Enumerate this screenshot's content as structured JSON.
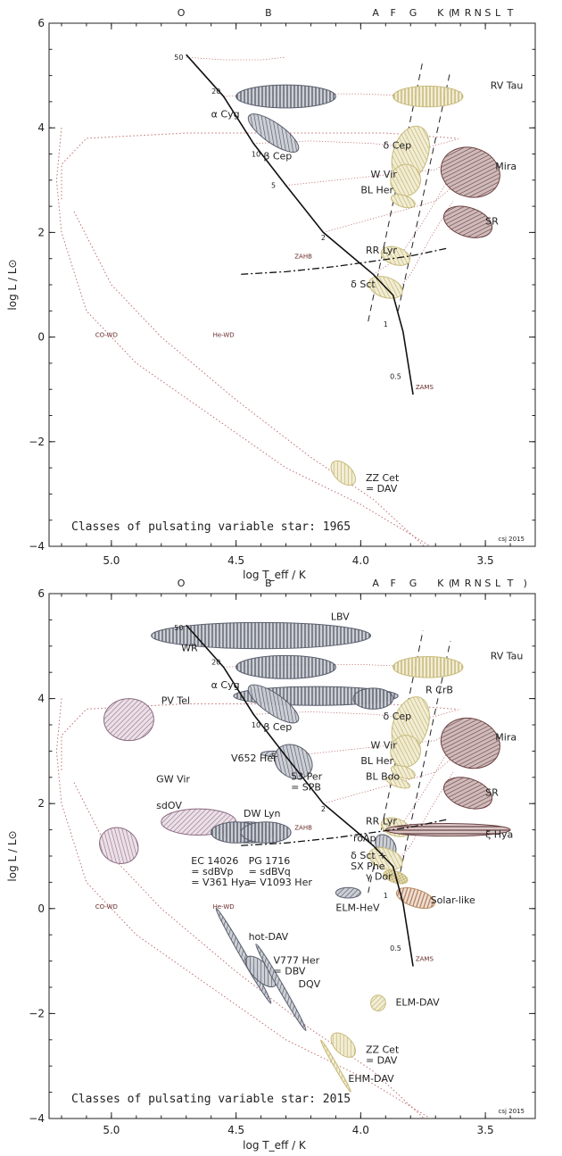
{
  "chart_data": [
    {
      "type": "scatter",
      "title": "Classes of pulsating variable star: 1965",
      "credit": "csj 2015",
      "xlabel": "log T_eff / K",
      "ylabel": "log L / L⊙",
      "x_reversed": true,
      "xlim": [
        5.25,
        3.3
      ],
      "ylim": [
        -4,
        6
      ],
      "xticks": [
        5.0,
        4.5,
        4.0,
        3.5
      ],
      "xtick_labels": [
        "5.0",
        "4.5",
        "4.0",
        "3.5"
      ],
      "yticks": [
        -4,
        -2,
        0,
        2,
        4,
        6
      ],
      "ytick_labels": [
        "−4",
        "−2",
        "0",
        "2",
        "4",
        "6"
      ],
      "spectral_types": [
        "O",
        "B",
        "A",
        "F",
        "G",
        "K",
        "(",
        "M",
        "R",
        "N",
        "S",
        "L",
        "T"
      ],
      "spectral_types_x": [
        4.72,
        4.37,
        3.94,
        3.87,
        3.79,
        3.68,
        3.64,
        3.62,
        3.57,
        3.53,
        3.49,
        3.45,
        3.4
      ],
      "zams": [
        [
          4.7,
          5.4
        ],
        [
          4.55,
          4.6
        ],
        [
          4.43,
          3.7
        ],
        [
          4.3,
          2.9
        ],
        [
          4.15,
          2.0
        ],
        [
          4.05,
          1.6
        ],
        [
          3.95,
          1.2
        ],
        [
          3.87,
          0.8
        ],
        [
          3.83,
          0.1
        ],
        [
          3.79,
          -1.1
        ]
      ],
      "zams_label": "ZAMS",
      "zahb": [
        [
          4.48,
          1.2
        ],
        [
          4.3,
          1.25
        ],
        [
          4.1,
          1.35
        ],
        [
          3.95,
          1.45
        ],
        [
          3.8,
          1.55
        ],
        [
          3.65,
          1.7
        ]
      ],
      "zahb_label": "ZAHB",
      "mass_labels": [
        {
          "text": "50",
          "x": 4.73,
          "y": 5.3
        },
        {
          "text": "20",
          "x": 4.58,
          "y": 4.65
        },
        {
          "text": "10",
          "x": 4.42,
          "y": 3.45
        },
        {
          "text": "5",
          "x": 4.35,
          "y": 2.85
        },
        {
          "text": "2",
          "x": 4.15,
          "y": 1.85
        },
        {
          "text": "1",
          "x": 3.9,
          "y": 0.2
        },
        {
          "text": "0.5",
          "x": 3.86,
          "y": -0.8
        }
      ],
      "instability_strip": [
        {
          "x1": 3.97,
          "y1": 0.3,
          "x2": 3.75,
          "y2": 5.3
        },
        {
          "x1": 3.85,
          "y1": 0.5,
          "x2": 3.64,
          "y2": 5.1
        }
      ],
      "wd_tracks": [
        {
          "label": "CO-WD",
          "label_x": 5.02,
          "label_y": 0.0
        },
        {
          "label": "He-WD",
          "label_x": 4.55,
          "label_y": 0.0
        }
      ],
      "classes": [
        {
          "name": "α Cyg",
          "cx": 4.3,
          "cy": 4.6,
          "rx": 0.2,
          "ry": 0.22,
          "angle": 0,
          "color": "#5a5f6e",
          "hatch": "vertical",
          "label_x": 4.6,
          "label_y": 4.2
        },
        {
          "name": "β Cep",
          "cx": 4.35,
          "cy": 3.9,
          "rx": 0.35,
          "ry": 0.12,
          "angle": -55,
          "color": "#5a5f6e",
          "hatch": "diagonal",
          "label_x": 4.39,
          "label_y": 3.4
        },
        {
          "name": "RV Tau",
          "cx": 3.73,
          "cy": 4.6,
          "rx": 0.14,
          "ry": 0.2,
          "angle": 0,
          "color": "#c8bb7c",
          "hatch": "vertical",
          "label_x": 3.48,
          "label_y": 4.75
        },
        {
          "name": "δ Cep",
          "cx": 3.8,
          "cy": 3.5,
          "rx": 1.0,
          "ry": 0.07,
          "angle": -72,
          "color": "#c8bb7c",
          "hatch": "diagonal",
          "label_x": 3.91,
          "label_y": 3.6
        },
        {
          "name": "W Vir",
          "cx": 3.82,
          "cy": 3.0,
          "rx": 0.55,
          "ry": 0.06,
          "angle": -72,
          "color": "#c8bb7c",
          "hatch": "diagonal",
          "label_x": 3.96,
          "label_y": 3.05
        },
        {
          "name": "BL Her",
          "cx": 3.83,
          "cy": 2.6,
          "rx": 0.2,
          "ry": 0.05,
          "angle": -72,
          "color": "#c8bb7c",
          "hatch": "diagonal",
          "label_x": 4.0,
          "label_y": 2.75
        },
        {
          "name": "RR Lyr",
          "cx": 3.86,
          "cy": 1.55,
          "rx": 0.3,
          "ry": 0.06,
          "angle": -72,
          "color": "#c8bb7c",
          "hatch": "diagonal",
          "label_x": 3.98,
          "label_y": 1.6
        },
        {
          "name": "δ Sct",
          "cx": 3.9,
          "cy": 0.95,
          "rx": 0.35,
          "ry": 0.07,
          "angle": -72,
          "color": "#c8bb7c",
          "hatch": "diagonal",
          "label_x": 4.04,
          "label_y": 0.95
        },
        {
          "name": "Mira",
          "cx": 3.56,
          "cy": 3.15,
          "rx": 0.85,
          "ry": 0.12,
          "angle": -72,
          "color": "#6a4040",
          "hatch": "diagonal",
          "label_x": 3.46,
          "label_y": 3.2
        },
        {
          "name": "SR",
          "cx": 3.57,
          "cy": 2.2,
          "rx": 0.5,
          "ry": 0.1,
          "angle": -72,
          "color": "#6a4040",
          "hatch": "diagonal",
          "label_x": 3.5,
          "label_y": 2.15
        },
        {
          "name": "ZZ Cet\n= DAV",
          "cx": 4.07,
          "cy": -2.6,
          "rx": 0.3,
          "ry": 0.06,
          "angle": -45,
          "color": "#c8bb7c",
          "hatch": "diagonal",
          "label_x": 3.98,
          "label_y": -2.75
        }
      ]
    },
    {
      "type": "scatter",
      "title": "Classes of pulsating variable star: 2015",
      "credit": "csj 2015",
      "xlabel": "log T_eff / K",
      "ylabel": "log L / L⊙",
      "x_reversed": true,
      "xlim": [
        5.25,
        3.3
      ],
      "ylim": [
        -4,
        6
      ],
      "xticks": [
        5.0,
        4.5,
        4.0,
        3.5
      ],
      "xtick_labels": [
        "5.0",
        "4.5",
        "4.0",
        "3.5"
      ],
      "yticks": [
        -4,
        -2,
        0,
        2,
        4,
        6
      ],
      "ytick_labels": [
        "−4",
        "−2",
        "0",
        "2",
        "4",
        "6"
      ],
      "spectral_types": [
        "O",
        "B",
        "A",
        "F",
        "G",
        "K",
        "(",
        "M",
        "R",
        "N",
        "S",
        "L",
        "T",
        ")"
      ],
      "spectral_types_x": [
        4.72,
        4.37,
        3.94,
        3.87,
        3.79,
        3.68,
        3.64,
        3.62,
        3.57,
        3.53,
        3.49,
        3.45,
        3.4,
        3.34
      ],
      "zams": [
        [
          4.7,
          5.4
        ],
        [
          4.55,
          4.6
        ],
        [
          4.43,
          3.7
        ],
        [
          4.3,
          2.9
        ],
        [
          4.15,
          2.0
        ],
        [
          4.05,
          1.6
        ],
        [
          3.95,
          1.2
        ],
        [
          3.87,
          0.8
        ],
        [
          3.83,
          0.1
        ],
        [
          3.79,
          -1.1
        ]
      ],
      "zams_label": "ZAMS",
      "zahb": [
        [
          4.48,
          1.2
        ],
        [
          4.3,
          1.25
        ],
        [
          4.1,
          1.35
        ],
        [
          3.95,
          1.45
        ],
        [
          3.8,
          1.55
        ],
        [
          3.65,
          1.7
        ]
      ],
      "zahb_label": "ZAHB",
      "mass_labels": [
        {
          "text": "50",
          "x": 4.73,
          "y": 5.3
        },
        {
          "text": "20",
          "x": 4.58,
          "y": 4.65
        },
        {
          "text": "10",
          "x": 4.42,
          "y": 3.45
        },
        {
          "text": "5",
          "x": 4.35,
          "y": 2.85
        },
        {
          "text": "2",
          "x": 4.15,
          "y": 1.85
        },
        {
          "text": "1",
          "x": 3.9,
          "y": 0.2
        },
        {
          "text": "0.5",
          "x": 3.86,
          "y": -0.8
        }
      ],
      "instability_strip": [
        {
          "x1": 3.97,
          "y1": 0.3,
          "x2": 3.75,
          "y2": 5.3
        },
        {
          "x1": 3.85,
          "y1": 0.5,
          "x2": 3.64,
          "y2": 5.1
        }
      ],
      "wd_tracks": [
        {
          "label": "CO-WD",
          "label_x": 5.02,
          "label_y": 0.0
        },
        {
          "label": "He-WD",
          "label_x": 4.55,
          "label_y": 0.0
        }
      ],
      "classes": [
        {
          "name": "LBV",
          "cx": 4.4,
          "cy": 5.2,
          "rx": 0.44,
          "ry": 0.25,
          "angle": 0,
          "color": "#5a5f6e",
          "hatch": "vertical",
          "label_x": 4.12,
          "label_y": 5.5
        },
        {
          "name": "WR",
          "cx": 4.65,
          "cy": 5.1,
          "rx": 0.0,
          "ry": 0.0,
          "angle": 0,
          "color": "#5a5f6e",
          "hatch": "none",
          "label_x": 4.72,
          "label_y": 4.9
        },
        {
          "name": "α Cyg",
          "cx": 4.3,
          "cy": 4.6,
          "rx": 0.2,
          "ry": 0.22,
          "angle": 0,
          "color": "#5a5f6e",
          "hatch": "vertical",
          "label_x": 4.6,
          "label_y": 4.2
        },
        {
          "name": "PV Tel",
          "cx": 4.18,
          "cy": 4.05,
          "rx": 0.33,
          "ry": 0.18,
          "angle": 0,
          "color": "#5a5f6e",
          "hatch": "vertical",
          "label_x": 4.8,
          "label_y": 3.9
        },
        {
          "name": "R CrB",
          "cx": 3.95,
          "cy": 4.0,
          "rx": 0.08,
          "ry": 0.2,
          "angle": 0,
          "color": "#5a5f6e",
          "hatch": "vertical",
          "label_x": 3.74,
          "label_y": 4.1
        },
        {
          "name": "β Cep",
          "cx": 4.35,
          "cy": 3.9,
          "rx": 0.35,
          "ry": 0.12,
          "angle": -55,
          "color": "#5a5f6e",
          "hatch": "diagonal",
          "label_x": 4.39,
          "label_y": 3.4
        },
        {
          "name": "V652 Her",
          "cx": 4.35,
          "cy": 2.95,
          "rx": 0.05,
          "ry": 0.05,
          "angle": 0,
          "color": "#5a5f6e",
          "hatch": "diagonal",
          "label_x": 4.52,
          "label_y": 2.8
        },
        {
          "name": "53 Per\n= SPB",
          "cx": 4.27,
          "cy": 2.8,
          "rx": 0.55,
          "ry": 0.08,
          "angle": -58,
          "color": "#5a5f6e",
          "hatch": "diagonal",
          "label_x": 4.28,
          "label_y": 2.45
        },
        {
          "name": "RV Tau",
          "cx": 3.73,
          "cy": 4.6,
          "rx": 0.14,
          "ry": 0.2,
          "angle": 0,
          "color": "#c8bb7c",
          "hatch": "vertical",
          "label_x": 3.48,
          "label_y": 4.75
        },
        {
          "name": "δ Cep",
          "cx": 3.8,
          "cy": 3.5,
          "rx": 1.0,
          "ry": 0.07,
          "angle": -72,
          "color": "#c8bb7c",
          "hatch": "diagonal",
          "label_x": 3.91,
          "label_y": 3.6
        },
        {
          "name": "W Vir",
          "cx": 3.82,
          "cy": 3.0,
          "rx": 0.55,
          "ry": 0.06,
          "angle": -72,
          "color": "#c8bb7c",
          "hatch": "diagonal",
          "label_x": 3.96,
          "label_y": 3.05
        },
        {
          "name": "BL Her",
          "cx": 3.83,
          "cy": 2.6,
          "rx": 0.2,
          "ry": 0.05,
          "angle": -72,
          "color": "#c8bb7c",
          "hatch": "diagonal",
          "label_x": 4.0,
          "label_y": 2.75
        },
        {
          "name": "BL Boo",
          "cx": 3.85,
          "cy": 2.4,
          "rx": 0.15,
          "ry": 0.05,
          "angle": -72,
          "color": "#c8bb7c",
          "hatch": "diagonal",
          "label_x": 3.98,
          "label_y": 2.45
        },
        {
          "name": "RR Lyr",
          "cx": 3.86,
          "cy": 1.55,
          "rx": 0.3,
          "ry": 0.06,
          "angle": -72,
          "color": "#c8bb7c",
          "hatch": "diagonal",
          "label_x": 3.98,
          "label_y": 1.6
        },
        {
          "name": "roAp",
          "cx": 3.9,
          "cy": 1.2,
          "rx": 0.3,
          "ry": 0.05,
          "angle": -40,
          "color": "#5a5f6e",
          "hatch": "diagonal",
          "label_x": 4.03,
          "label_y": 1.28
        },
        {
          "name": "δ Sct +\nSX Phe",
          "cx": 3.9,
          "cy": 0.95,
          "rx": 0.35,
          "ry": 0.07,
          "angle": -72,
          "color": "#c8bb7c",
          "hatch": "diagonal",
          "label_x": 4.04,
          "label_y": 0.95
        },
        {
          "name": "γ Dor",
          "cx": 3.86,
          "cy": 0.6,
          "rx": 0.2,
          "ry": 0.05,
          "angle": -72,
          "color": "#c8bb7c",
          "hatch": "cross",
          "label_x": 3.98,
          "label_y": 0.55
        },
        {
          "name": "Solar-like",
          "cx": 3.78,
          "cy": 0.2,
          "rx": 0.3,
          "ry": 0.08,
          "angle": -72,
          "color": "#b88a60",
          "hatch": "horizontal",
          "label_x": 3.72,
          "label_y": 0.1
        },
        {
          "name": "Mira",
          "cx": 3.56,
          "cy": 3.15,
          "rx": 0.85,
          "ry": 0.12,
          "angle": -72,
          "color": "#6a4040",
          "hatch": "diagonal",
          "label_x": 3.46,
          "label_y": 3.2
        },
        {
          "name": "SR",
          "cx": 3.57,
          "cy": 2.2,
          "rx": 0.5,
          "ry": 0.1,
          "angle": -72,
          "color": "#6a4040",
          "hatch": "diagonal",
          "label_x": 3.5,
          "label_y": 2.15
        },
        {
          "name": "ξ Hya",
          "cx": 3.65,
          "cy": 1.5,
          "rx": 0.25,
          "ry": 0.12,
          "angle": 0,
          "color": "#6a4040",
          "hatch": "horizontal",
          "label_x": 3.5,
          "label_y": 1.35
        },
        {
          "name": "GW Vir",
          "cx": 4.93,
          "cy": 3.6,
          "rx": 0.1,
          "ry": 0.4,
          "angle": 0,
          "color": "#8a6a80",
          "hatch": "diagonal",
          "label_x": 4.82,
          "label_y": 2.4
        },
        {
          "name": "sdOV",
          "cx": 4.65,
          "cy": 1.65,
          "rx": 0.15,
          "ry": 0.25,
          "angle": 0,
          "color": "#8a6a80",
          "hatch": "diagonal",
          "label_x": 4.82,
          "label_y": 1.9
        },
        {
          "name": "GW Vir (WD)",
          "cx": 4.97,
          "cy": 1.2,
          "rx": 0.6,
          "ry": 0.08,
          "angle": -60,
          "color": "#8a6a80",
          "hatch": "diagonal",
          "label_x": 4.82,
          "label_y": 2.4
        },
        {
          "name": "DW Lyn",
          "cx": 4.45,
          "cy": 1.45,
          "rx": 0.1,
          "ry": 0.2,
          "angle": 0,
          "color": "#5a5f6e",
          "hatch": "vertical",
          "label_x": 4.47,
          "label_y": 1.75
        },
        {
          "name": "EC 14026\n= sdBVp\n= V361 Hya",
          "cx": 4.5,
          "cy": 1.45,
          "rx": 0.1,
          "ry": 0.2,
          "angle": 0,
          "color": "#5a5f6e",
          "hatch": "vertical",
          "label_x": 4.68,
          "label_y": 0.85
        },
        {
          "name": "PG 1716\n= sdBVq\n= V1093 Her",
          "cx": 4.38,
          "cy": 1.45,
          "rx": 0.1,
          "ry": 0.2,
          "angle": 0,
          "color": "#5a5f6e",
          "hatch": "vertical",
          "label_x": 4.45,
          "label_y": 0.85
        },
        {
          "name": "ELM-HeV",
          "cx": 4.05,
          "cy": 0.3,
          "rx": 0.05,
          "ry": 0.1,
          "angle": 0,
          "color": "#5a5f6e",
          "hatch": "diagonal",
          "label_x": 4.1,
          "label_y": -0.05
        },
        {
          "name": "hot-DAV",
          "cx": 4.47,
          "cy": -0.9,
          "rx": 0.1,
          "ry": 0.22,
          "angle": -30,
          "color": "#5a5f6e",
          "hatch": "diagonal",
          "label_x": 4.45,
          "label_y": -0.6
        },
        {
          "name": "V777 Her\n= DBV",
          "cx": 4.4,
          "cy": -1.2,
          "rx": 0.3,
          "ry": 0.08,
          "angle": -45,
          "color": "#5a5f6e",
          "hatch": "diagonal",
          "label_x": 4.35,
          "label_y": -1.05
        },
        {
          "name": "DQV",
          "cx": 4.32,
          "cy": -1.5,
          "rx": 0.1,
          "ry": 0.2,
          "angle": -30,
          "color": "#5a5f6e",
          "hatch": "diagonal",
          "label_x": 4.25,
          "label_y": -1.5
        },
        {
          "name": "ELM-DAV",
          "cx": 3.93,
          "cy": -1.8,
          "rx": 0.03,
          "ry": 0.15,
          "angle": 0,
          "color": "#c8bb7c",
          "hatch": "diagonal",
          "label_x": 3.86,
          "label_y": -1.85
        },
        {
          "name": "ZZ Cet\n= DAV",
          "cx": 4.07,
          "cy": -2.6,
          "rx": 0.3,
          "ry": 0.06,
          "angle": -45,
          "color": "#c8bb7c",
          "hatch": "diagonal",
          "label_x": 3.98,
          "label_y": -2.75
        },
        {
          "name": "EHM-DAV",
          "cx": 4.1,
          "cy": -3.0,
          "rx": 0.06,
          "ry": 0.12,
          "angle": -30,
          "color": "#c8bb7c",
          "hatch": "diagonal",
          "label_x": 4.05,
          "label_y": -3.3
        }
      ]
    }
  ]
}
